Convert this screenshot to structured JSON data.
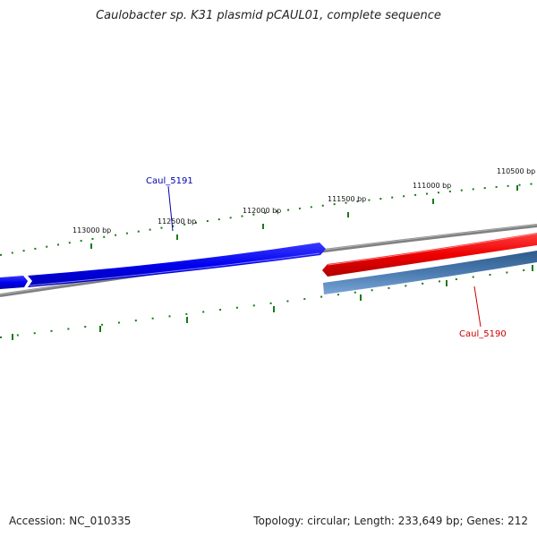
{
  "title": "Caulobacter sp. K31 plasmid pCAUL01, complete sequence",
  "footer": {
    "accession": "Accession: NC_010335",
    "summary": "Topology: circular; Length: 233,649 bp; Genes: 212"
  },
  "ruler": {
    "tick_labels": [
      "113000 bp",
      "112500 bp",
      "112000 bp",
      "111500 bp",
      "111000 bp",
      "110500 bp"
    ],
    "tick_color": "#1a7a1a"
  },
  "genes": [
    {
      "name": "Caul_5191",
      "color": "#0000ee",
      "label_color": "#0000aa"
    },
    {
      "name": "Caul_5190",
      "color": "#ee0000",
      "label_color": "#cc0000"
    }
  ],
  "colors": {
    "backbone": "#808080",
    "blue_gene": "#0000ee",
    "red_gene": "#ee0000",
    "steel_gene": "#4a7ab0"
  }
}
